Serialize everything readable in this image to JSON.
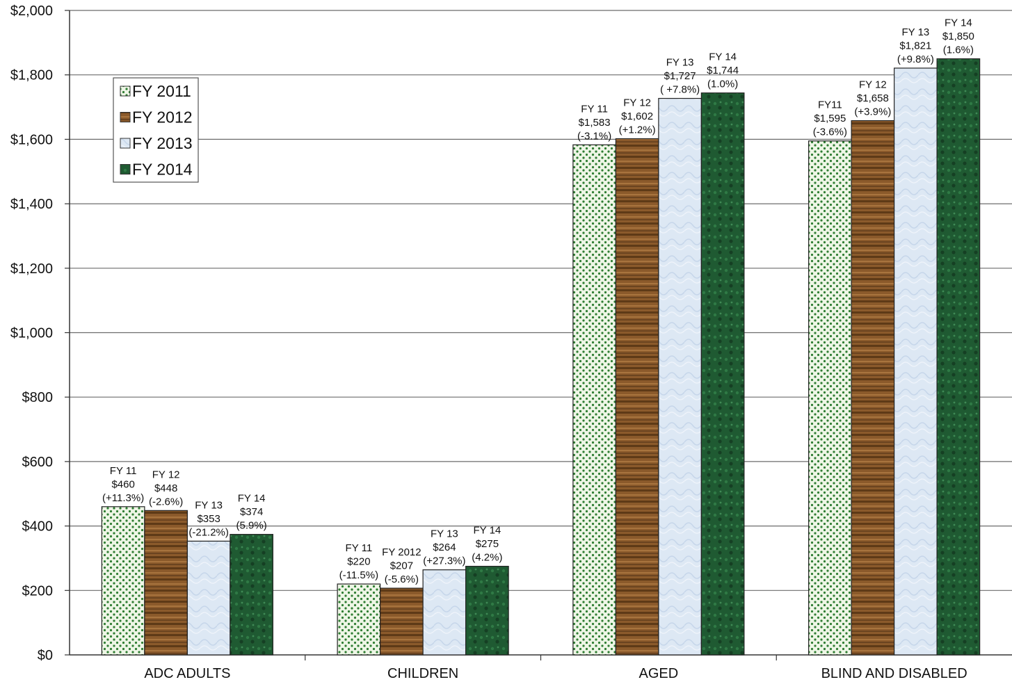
{
  "chart_data": {
    "type": "bar",
    "categories": [
      "ADC ADULTS",
      "CHILDREN",
      "AGED",
      "BLIND AND DISABLED"
    ],
    "series": [
      {
        "name": "FY 2011",
        "values": [
          460,
          220,
          1583,
          1595
        ],
        "color": "#2e7d32",
        "pattern": "green-dots"
      },
      {
        "name": "FY 2012",
        "values": [
          448,
          207,
          1602,
          1658
        ],
        "color": "#8b5a2b",
        "pattern": "wood"
      },
      {
        "name": "FY 2013",
        "values": [
          353,
          264,
          1727,
          1821
        ],
        "color": "#dbe6f3",
        "pattern": "light-blue"
      },
      {
        "name": "FY 2014",
        "values": [
          374,
          275,
          1744,
          1850
        ],
        "color": "#1f5a32",
        "pattern": "dark-green"
      }
    ],
    "data_labels": [
      [
        [
          "FY 11",
          "$460",
          "(+11.3%)"
        ],
        [
          "FY 11",
          "$220",
          "(-11.5%)"
        ],
        [
          "FY 11",
          "$1,583",
          "(-3.1%)"
        ],
        [
          "FY11",
          "$1,595",
          "(-3.6%)"
        ]
      ],
      [
        [
          "FY 12",
          "$448",
          "(-2.6%)"
        ],
        [
          "FY 2012",
          "$207",
          "(-5.6%)"
        ],
        [
          "FY 12",
          "$1,602",
          "(+1.2%)"
        ],
        [
          "FY 12",
          "$1,658",
          "(+3.9%)"
        ]
      ],
      [
        [
          "FY 13",
          "$353",
          "(-21.2%)"
        ],
        [
          "FY 13",
          "$264",
          "(+27.3%)"
        ],
        [
          "FY 13",
          "$1,727",
          "( +7.8%)"
        ],
        [
          "FY 13",
          "$1,821",
          "(+9.8%)"
        ]
      ],
      [
        [
          "FY 14",
          "$374",
          "(5.9%)"
        ],
        [
          "FY 14",
          "$275",
          "(4.2%)"
        ],
        [
          "FY 14",
          "$1,744",
          "(1.0%)"
        ],
        [
          "FY 14",
          "$1,850",
          "(1.6%)"
        ]
      ]
    ],
    "y_ticks": [
      "$0",
      "$200",
      "$400",
      "$600",
      "$800",
      "$1,000",
      "$1,200",
      "$1,400",
      "$1,600",
      "$1,800",
      "$2,000"
    ],
    "ylim": [
      0,
      2000
    ],
    "grid": true,
    "legend_position": "top-left",
    "title": "",
    "xlabel": "",
    "ylabel": ""
  }
}
